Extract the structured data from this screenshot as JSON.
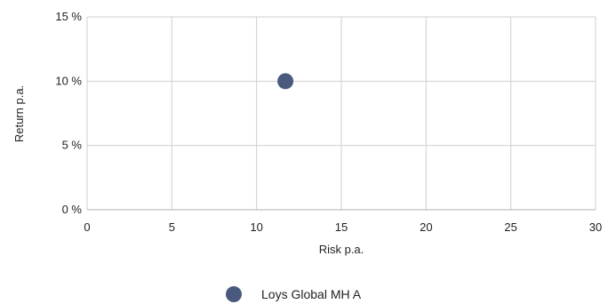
{
  "chart_data": {
    "type": "scatter",
    "xlabel": "Risk p.a.",
    "ylabel": "Return p.a.",
    "xlim": [
      0,
      30
    ],
    "ylim": [
      0,
      15
    ],
    "x_ticks": [
      0,
      5,
      10,
      15,
      20,
      25,
      30
    ],
    "x_tick_labels": [
      "0",
      "5",
      "10",
      "15",
      "20",
      "25",
      "30"
    ],
    "y_ticks": [
      0,
      5,
      10,
      15
    ],
    "y_tick_labels": [
      "0 %",
      "5 %",
      "10 %",
      "15 %"
    ],
    "grid": true,
    "legend_position": "bottom-center",
    "series": [
      {
        "name": "Loys Global MH A",
        "color": "#4a5a7e",
        "points": [
          {
            "x": 11.7,
            "y": 10.0
          }
        ]
      }
    ]
  }
}
